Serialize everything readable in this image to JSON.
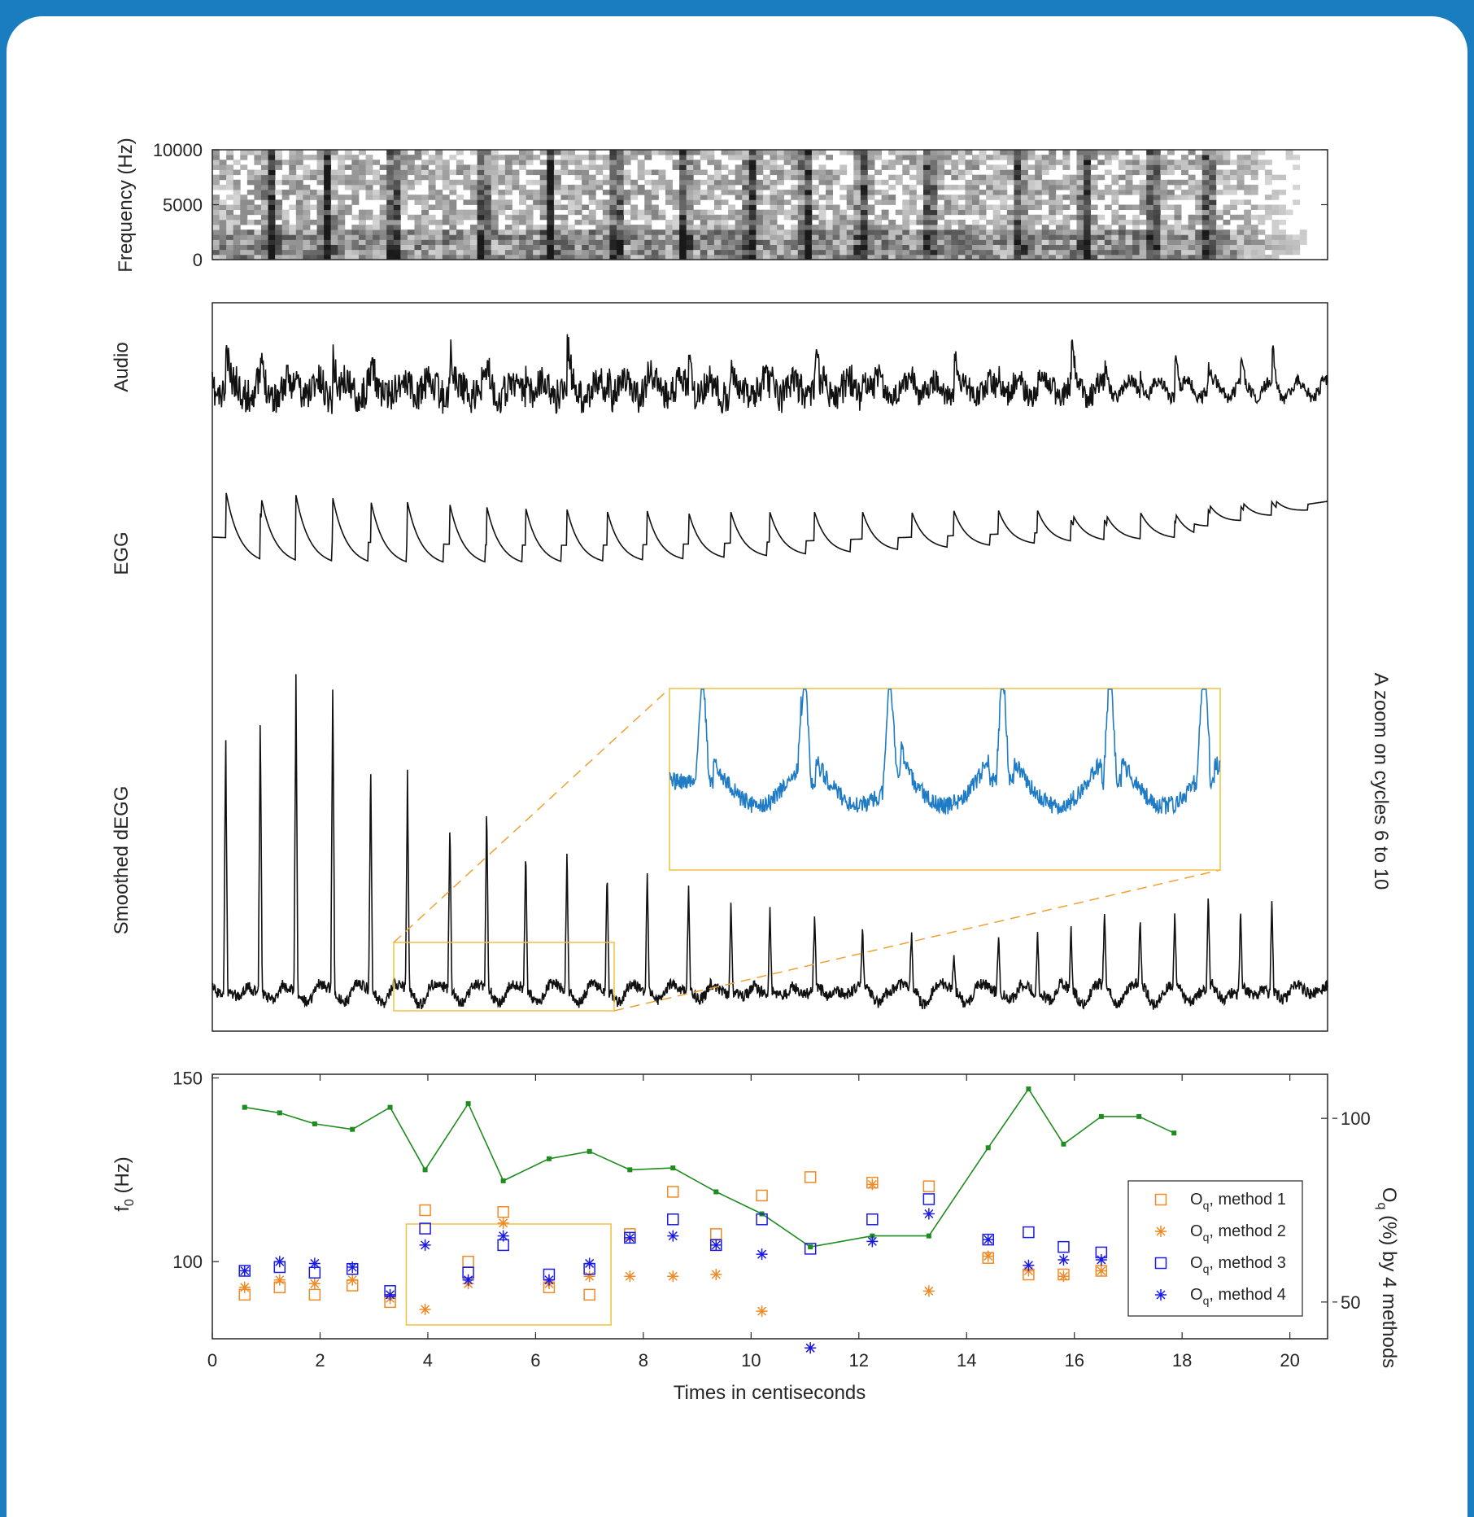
{
  "chart_data": [
    {
      "type": "heatmap",
      "ylabel": "Frequency (Hz)",
      "ylim": [
        0,
        10000
      ],
      "yticks": [
        0,
        5000,
        10000
      ]
    },
    {
      "type": "line",
      "series": [
        {
          "name": "Audio"
        },
        {
          "name": "EGG"
        },
        {
          "name": "Smoothed dEGG"
        }
      ],
      "zoom_label": "A zoom on cycles 6 to 10",
      "zoom_xrange": [
        3.4,
        7.4
      ]
    },
    {
      "type": "line",
      "xlabel": "Times in centiseconds",
      "ylabel": "f",
      "ylabel_sub": "0",
      "ylabel_unit": " (Hz)",
      "y2label": "O",
      "y2label_sub": "q",
      "y2label_rest": " (%) by 4 methods",
      "xlim": [
        0,
        20.7
      ],
      "xticks": [
        0,
        2,
        4,
        6,
        8,
        10,
        12,
        14,
        16,
        18,
        20
      ],
      "ylim": [
        79,
        151
      ],
      "yticks": [
        100,
        150
      ],
      "y2lim": [
        40,
        112
      ],
      "y2ticks": [
        50,
        100
      ],
      "f0": {
        "color": "#1e8c1e",
        "x": [
          0.6,
          1.25,
          1.9,
          2.6,
          3.3,
          3.95,
          4.75,
          5.4,
          6.25,
          7.0,
          7.75,
          8.55,
          9.35,
          10.2,
          11.1,
          12.25,
          13.3,
          14.4,
          15.15,
          15.8,
          16.5,
          17.2,
          17.85
        ],
        "y": [
          142,
          140.5,
          137.5,
          136,
          142,
          125,
          143,
          122,
          128,
          130,
          125,
          125.5,
          119,
          113,
          104,
          107,
          107,
          131,
          147,
          132,
          139.5,
          139.5,
          135
        ]
      },
      "series": [
        {
          "name": "method 1",
          "marker": "square",
          "color": "#f08a24",
          "values": [
            [
              0.6,
              52
            ],
            [
              1.25,
              54
            ],
            [
              1.9,
              52
            ],
            [
              2.6,
              54.5
            ],
            [
              3.3,
              50
            ],
            [
              3.95,
              75
            ],
            [
              4.75,
              61
            ],
            [
              5.4,
              74.5
            ],
            [
              6.25,
              54
            ],
            [
              7.0,
              52
            ],
            [
              7.75,
              68.5
            ],
            [
              8.55,
              80
            ],
            [
              9.35,
              68.5
            ],
            [
              10.2,
              79
            ],
            [
              11.1,
              84
            ],
            [
              12.25,
              82.5
            ],
            [
              13.3,
              81.5
            ],
            [
              14.4,
              62
            ],
            [
              15.15,
              57.5
            ],
            [
              15.8,
              57.5
            ],
            [
              16.5,
              58.5
            ]
          ]
        },
        {
          "name": "method 2",
          "marker": "star",
          "color": "#f08a24",
          "values": [
            [
              0.6,
              54
            ],
            [
              1.25,
              56
            ],
            [
              1.9,
              55
            ],
            [
              2.6,
              56
            ],
            [
              3.3,
              51
            ],
            [
              3.95,
              48
            ],
            [
              4.75,
              55
            ],
            [
              5.4,
              71.5
            ],
            [
              6.25,
              55
            ],
            [
              7.0,
              57
            ],
            [
              7.75,
              57
            ],
            [
              8.55,
              57
            ],
            [
              9.35,
              57.5
            ],
            [
              10.2,
              47.5
            ],
            [
              11.1,
              37.5
            ],
            [
              12.25,
              82
            ],
            [
              13.3,
              53
            ],
            [
              14.4,
              62.5
            ],
            [
              15.15,
              58.5
            ],
            [
              15.8,
              57
            ],
            [
              16.5,
              58.5
            ]
          ]
        },
        {
          "name": "method 3",
          "marker": "square",
          "color": "#1a1ae6",
          "values": [
            [
              0.6,
              58.5
            ],
            [
              1.25,
              59.5
            ],
            [
              1.9,
              58
            ],
            [
              2.6,
              59
            ],
            [
              3.3,
              53
            ],
            [
              3.95,
              70
            ],
            [
              4.75,
              58
            ],
            [
              5.4,
              65.5
            ],
            [
              6.25,
              57.5
            ],
            [
              7.0,
              59
            ],
            [
              7.75,
              67.5
            ],
            [
              8.55,
              72.5
            ],
            [
              9.35,
              65.5
            ],
            [
              10.2,
              72.5
            ],
            [
              11.1,
              64.5
            ],
            [
              12.25,
              72.5
            ],
            [
              13.3,
              78
            ],
            [
              14.4,
              67
            ],
            [
              15.15,
              69
            ],
            [
              15.8,
              65
            ],
            [
              16.5,
              63.5
            ]
          ]
        },
        {
          "name": "method 4",
          "marker": "star",
          "color": "#1a1ae6",
          "values": [
            [
              0.6,
              58.5
            ],
            [
              1.25,
              61
            ],
            [
              1.9,
              60.5
            ],
            [
              2.6,
              59.5
            ],
            [
              3.3,
              52
            ],
            [
              3.95,
              65.5
            ],
            [
              4.75,
              56
            ],
            [
              5.4,
              68
            ],
            [
              6.25,
              56
            ],
            [
              7.0,
              60.5
            ],
            [
              7.75,
              67.5
            ],
            [
              8.55,
              68
            ],
            [
              9.35,
              65.5
            ],
            [
              10.2,
              63
            ],
            [
              11.1,
              37.5
            ],
            [
              12.25,
              66.5
            ],
            [
              13.3,
              74
            ],
            [
              14.4,
              67
            ],
            [
              15.15,
              60
            ],
            [
              15.8,
              61.5
            ],
            [
              16.5,
              61.5
            ]
          ]
        }
      ],
      "legend": {
        "placement": "right",
        "entries": [
          {
            "main": "O",
            "sub": "q",
            "rest": ", method 1"
          },
          {
            "main": "O",
            "sub": "q",
            "rest": ", method 2"
          },
          {
            "main": "O",
            "sub": "q",
            "rest": ", method 3"
          },
          {
            "main": "O",
            "sub": "q",
            "rest": ", method 4"
          }
        ]
      },
      "highlight_xrange": [
        3.6,
        7.4
      ]
    }
  ]
}
